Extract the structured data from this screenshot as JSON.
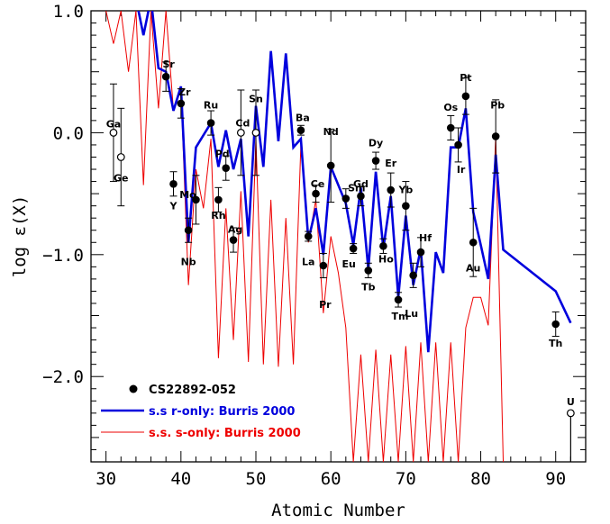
{
  "chart_data": {
    "type": "scatter",
    "xlabel": "Atomic Number",
    "ylabel": "log ε(X)",
    "xlim": [
      28,
      94
    ],
    "ylim": [
      -2.7,
      1.0
    ],
    "x_ticks": [
      30,
      40,
      50,
      60,
      70,
      80,
      90
    ],
    "y_ticks": [
      {
        "v": 1.0,
        "t": "1.0"
      },
      {
        "v": 0.0,
        "t": "0.0"
      },
      {
        "v": -1.0,
        "t": "−1.0"
      },
      {
        "v": -2.0,
        "t": "−2.0"
      }
    ],
    "colors": {
      "observed": "#000000",
      "r_only": "#0000dd",
      "s_only": "#ee0000"
    },
    "legend": {
      "position": "bottom-left",
      "observed": "CS22892-052",
      "r_only": "s.s r-only: Burris 2000",
      "s_only": "s.s. s-only: Burris 2000"
    },
    "observed": [
      {
        "z": 31,
        "y": 0.0,
        "el": "Ga",
        "err": 0.4,
        "open": true
      },
      {
        "z": 32,
        "y": -0.2,
        "el": "Ge",
        "err": 0.4,
        "open": true
      },
      {
        "z": 38,
        "y": 0.46,
        "el": "Sr",
        "err": 0.12
      },
      {
        "z": 39,
        "y": -0.42,
        "el": "Y",
        "err": 0.1
      },
      {
        "z": 40,
        "y": 0.24,
        "el": "Zr",
        "err": 0.12
      },
      {
        "z": 41,
        "y": -0.8,
        "el": "Nb",
        "err": 0.1
      },
      {
        "z": 42,
        "y": -0.55,
        "el": "Mo",
        "err": 0.2
      },
      {
        "z": 44,
        "y": 0.08,
        "el": "Ru",
        "err": 0.1
      },
      {
        "z": 45,
        "y": -0.55,
        "el": "Rh",
        "err": 0.1
      },
      {
        "z": 46,
        "y": -0.29,
        "el": "Pd",
        "err": 0.1
      },
      {
        "z": 47,
        "y": -0.88,
        "el": "Ag",
        "err": 0.1
      },
      {
        "z": 48,
        "y": 0.0,
        "el": "Cd",
        "err": 0.35,
        "open": true
      },
      {
        "z": 50,
        "y": 0.0,
        "el": "Sn",
        "err": 0.35,
        "open": true
      },
      {
        "z": 56,
        "y": 0.02,
        "el": "Ba",
        "err": 0.04
      },
      {
        "z": 57,
        "y": -0.85,
        "el": "La",
        "err": 0.04
      },
      {
        "z": 58,
        "y": -0.5,
        "el": "Ce",
        "err": 0.07
      },
      {
        "z": 59,
        "y": -1.09,
        "el": "Pr",
        "err": 0.1
      },
      {
        "z": 60,
        "y": -0.27,
        "el": "Nd",
        "err": 0.3
      },
      {
        "z": 62,
        "y": -0.54,
        "el": "Sm",
        "err": 0.08
      },
      {
        "z": 63,
        "y": -0.95,
        "el": "Eu",
        "err": 0.04
      },
      {
        "z": 64,
        "y": -0.52,
        "el": "Gd",
        "err": 0.08
      },
      {
        "z": 65,
        "y": -1.13,
        "el": "Tb",
        "err": 0.06
      },
      {
        "z": 66,
        "y": -0.23,
        "el": "Dy",
        "err": 0.07
      },
      {
        "z": 67,
        "y": -0.93,
        "el": "Ho",
        "err": 0.06
      },
      {
        "z": 68,
        "y": -0.47,
        "el": "Er",
        "err": 0.14
      },
      {
        "z": 69,
        "y": -1.37,
        "el": "Tm",
        "err": 0.06
      },
      {
        "z": 70,
        "y": -0.6,
        "el": "Yb",
        "err": 0.2
      },
      {
        "z": 71,
        "y": -1.17,
        "el": "Lu",
        "err": 0.1
      },
      {
        "z": 72,
        "y": -0.98,
        "el": "Hf",
        "err": 0.12
      },
      {
        "z": 76,
        "y": 0.04,
        "el": "Os",
        "err": 0.1
      },
      {
        "z": 77,
        "y": -0.1,
        "el": "Ir",
        "err": 0.14
      },
      {
        "z": 78,
        "y": 0.3,
        "el": "Pt",
        "err": 0.15
      },
      {
        "z": 79,
        "y": -0.9,
        "el": "Au",
        "err": 0.28
      },
      {
        "z": 82,
        "y": -0.03,
        "el": "Pb",
        "err": 0.3
      },
      {
        "z": 90,
        "y": -1.57,
        "el": "Th",
        "err": 0.1
      },
      {
        "z": 92,
        "y": -2.3,
        "el": "U",
        "open": true,
        "upper": true
      }
    ],
    "r_only": [
      {
        "z": 34,
        "y": 1.1
      },
      {
        "z": 35,
        "y": 0.8
      },
      {
        "z": 36,
        "y": 1.1
      },
      {
        "z": 37,
        "y": 0.53
      },
      {
        "z": 38,
        "y": 0.5
      },
      {
        "z": 39,
        "y": 0.18
      },
      {
        "z": 40,
        "y": 0.38
      },
      {
        "z": 41,
        "y": -0.9
      },
      {
        "z": 42,
        "y": -0.12
      },
      {
        "z": 44,
        "y": 0.08
      },
      {
        "z": 45,
        "y": -0.28
      },
      {
        "z": 46,
        "y": 0.02
      },
      {
        "z": 47,
        "y": -0.3
      },
      {
        "z": 48,
        "y": -0.05
      },
      {
        "z": 49,
        "y": -0.85
      },
      {
        "z": 50,
        "y": 0.22
      },
      {
        "z": 51,
        "y": -0.28
      },
      {
        "z": 52,
        "y": 0.67
      },
      {
        "z": 53,
        "y": -0.07
      },
      {
        "z": 54,
        "y": 0.65
      },
      {
        "z": 55,
        "y": -0.12
      },
      {
        "z": 56,
        "y": -0.05
      },
      {
        "z": 57,
        "y": -0.88
      },
      {
        "z": 58,
        "y": -0.62
      },
      {
        "z": 59,
        "y": -1.0
      },
      {
        "z": 60,
        "y": -0.28
      },
      {
        "z": 62,
        "y": -0.58
      },
      {
        "z": 63,
        "y": -0.92
      },
      {
        "z": 64,
        "y": -0.45
      },
      {
        "z": 65,
        "y": -1.12
      },
      {
        "z": 66,
        "y": -0.32
      },
      {
        "z": 67,
        "y": -0.95
      },
      {
        "z": 68,
        "y": -0.52
      },
      {
        "z": 69,
        "y": -1.35
      },
      {
        "z": 70,
        "y": -0.68
      },
      {
        "z": 71,
        "y": -1.25
      },
      {
        "z": 72,
        "y": -0.95
      },
      {
        "z": 73,
        "y": -1.8
      },
      {
        "z": 74,
        "y": -0.98
      },
      {
        "z": 75,
        "y": -1.15
      },
      {
        "z": 76,
        "y": -0.12
      },
      {
        "z": 77,
        "y": -0.12
      },
      {
        "z": 78,
        "y": 0.2
      },
      {
        "z": 79,
        "y": -0.65
      },
      {
        "z": 80,
        "y": -0.92
      },
      {
        "z": 81,
        "y": -1.2
      },
      {
        "z": 82,
        "y": -0.18
      },
      {
        "z": 83,
        "y": -0.96
      },
      {
        "z": 90,
        "y": -1.3
      },
      {
        "z": 92,
        "y": -1.56
      }
    ],
    "s_only": [
      {
        "z": 30,
        "y": 1.0
      },
      {
        "z": 31,
        "y": 0.73
      },
      {
        "z": 32,
        "y": 1.0
      },
      {
        "z": 33,
        "y": 0.5
      },
      {
        "z": 34,
        "y": 1.0
      },
      {
        "z": 35,
        "y": -0.43
      },
      {
        "z": 36,
        "y": 1.0
      },
      {
        "z": 37,
        "y": 0.2
      },
      {
        "z": 38,
        "y": 1.0
      },
      {
        "z": 39,
        "y": 0.18
      },
      {
        "z": 40,
        "y": 0.35
      },
      {
        "z": 41,
        "y": -1.25
      },
      {
        "z": 42,
        "y": -0.3
      },
      {
        "z": 43,
        "y": -0.62
      },
      {
        "z": 44,
        "y": -0.05
      },
      {
        "z": 45,
        "y": -1.85
      },
      {
        "z": 46,
        "y": -0.62
      },
      {
        "z": 47,
        "y": -1.7
      },
      {
        "z": 48,
        "y": -0.48
      },
      {
        "z": 49,
        "y": -1.88
      },
      {
        "z": 50,
        "y": -0.05
      },
      {
        "z": 51,
        "y": -1.9
      },
      {
        "z": 52,
        "y": -0.55
      },
      {
        "z": 53,
        "y": -1.92
      },
      {
        "z": 54,
        "y": -0.7
      },
      {
        "z": 55,
        "y": -1.9
      },
      {
        "z": 56,
        "y": -0.1
      },
      {
        "z": 57,
        "y": -0.9
      },
      {
        "z": 58,
        "y": -0.55
      },
      {
        "z": 59,
        "y": -1.48
      },
      {
        "z": 60,
        "y": -0.85
      },
      {
        "z": 61,
        "y": -1.15
      },
      {
        "z": 62,
        "y": -1.6
      },
      {
        "z": 63,
        "y": -2.7
      },
      {
        "z": 64,
        "y": -1.82
      },
      {
        "z": 65,
        "y": -2.7
      },
      {
        "z": 66,
        "y": -1.78
      },
      {
        "z": 67,
        "y": -2.7
      },
      {
        "z": 68,
        "y": -1.82
      },
      {
        "z": 69,
        "y": -2.7
      },
      {
        "z": 70,
        "y": -1.75
      },
      {
        "z": 71,
        "y": -2.7
      },
      {
        "z": 72,
        "y": -1.72
      },
      {
        "z": 73,
        "y": -2.7
      },
      {
        "z": 74,
        "y": -1.72
      },
      {
        "z": 75,
        "y": -2.7
      },
      {
        "z": 76,
        "y": -1.72
      },
      {
        "z": 77,
        "y": -2.7
      },
      {
        "z": 78,
        "y": -1.6
      },
      {
        "z": 79,
        "y": -1.35
      },
      {
        "z": 80,
        "y": -1.35
      },
      {
        "z": 81,
        "y": -1.58
      },
      {
        "z": 82,
        "y": -0.03
      },
      {
        "z": 83,
        "y": -2.7
      }
    ]
  }
}
